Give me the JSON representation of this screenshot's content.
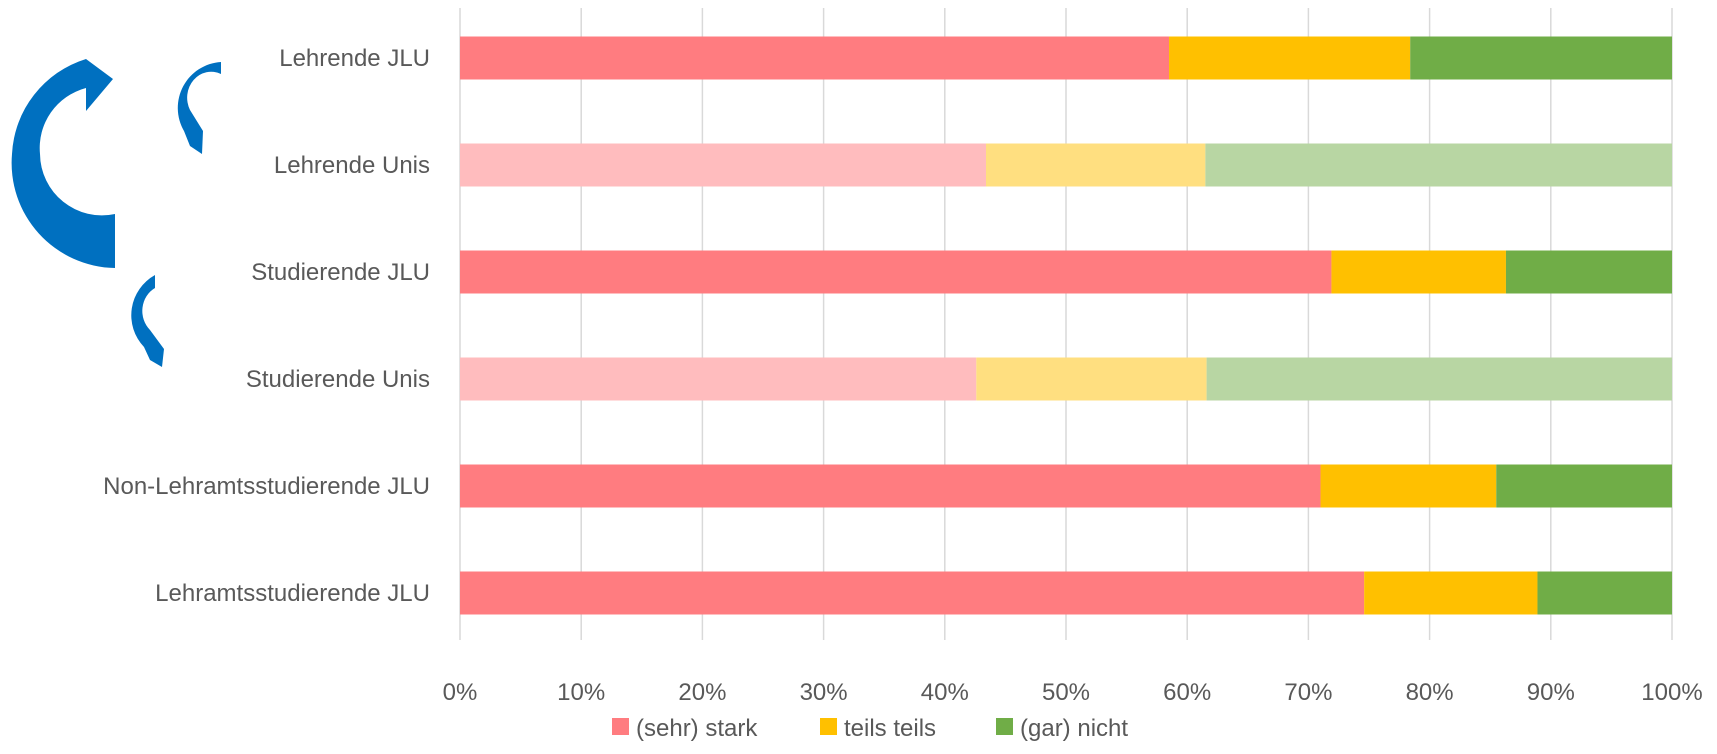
{
  "chart_data": {
    "type": "bar",
    "orientation": "horizontal",
    "stacked": true,
    "percent_stacked": true,
    "categories": [
      "Lehrende JLU",
      "Lehrende Unis",
      "Studierende JLU",
      "Studierende Unis",
      "Non-Lehramtsstudierende JLU",
      "Lehramtsstudierende JLU"
    ],
    "faded_categories": [
      "Lehrende Unis",
      "Studierende Unis"
    ],
    "series": [
      {
        "name": "(sehr) stark",
        "color": "#ff7c80",
        "faded_color": "#ffbcbe",
        "values": [
          58.5,
          43.4,
          71.9,
          42.6,
          71.0,
          74.6
        ]
      },
      {
        "name": "teils teils",
        "color": "#ffc000",
        "faded_color": "#ffdf80",
        "values": [
          19.9,
          18.1,
          14.4,
          19.0,
          14.5,
          14.3
        ]
      },
      {
        "name": "(gar) nicht",
        "color": "#70ad47",
        "faded_color": "#b8d6a3",
        "values": [
          21.6,
          38.5,
          13.7,
          38.4,
          14.5,
          11.1
        ]
      }
    ],
    "xlim": [
      0,
      100
    ],
    "x_ticks": [
      "0%",
      "10%",
      "20%",
      "30%",
      "40%",
      "50%",
      "60%",
      "70%",
      "80%",
      "90%",
      "100%"
    ],
    "grid": "vertical",
    "legend_position": "bottom",
    "title": "",
    "xlabel": "",
    "ylabel": ""
  },
  "annotations": {
    "arrow_color": "#0070c0",
    "arrows": [
      "large-curved-arrow-icon",
      "small-curved-arrow-icon",
      "small-curved-arrow-icon"
    ]
  }
}
